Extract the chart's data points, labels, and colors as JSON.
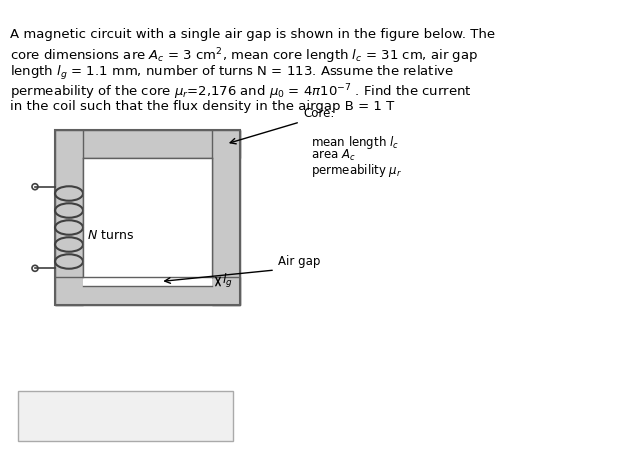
{
  "background_color": "#ffffff",
  "text_color": "#000000",
  "paragraph_lines": [
    "A magnetic circuit with a single air gap is shown in the figure below. The",
    "core dimensions are $A_c$ = 3 cm$^2$, mean core length $l_c$ = 31 cm, air gap",
    "length $l_g$ = 1.1 mm, number of turns N = 113. Assume the relative",
    "permeability of the core $\\mu_r$=2,176 and $\\mu_0$ = $4\\pi10^{-7}$ . Find the current",
    "in the coil such that the flux density in the airgap B = 1 T"
  ],
  "core_color": "#c8c8c8",
  "core_border_color": "#606060",
  "coil_color": "#404040",
  "answer_box_color": "#f0f0f0"
}
